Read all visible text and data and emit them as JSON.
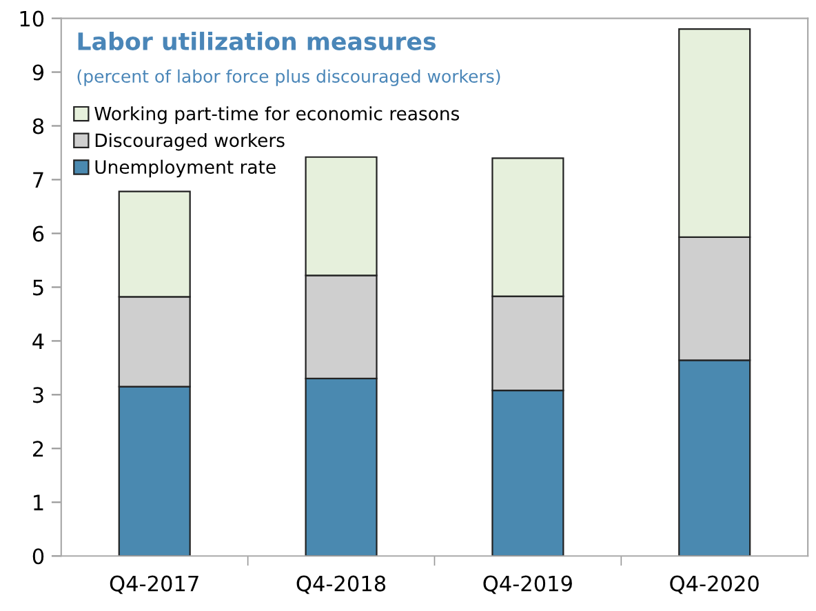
{
  "chart_data": {
    "type": "bar",
    "stacked": true,
    "title": "Labor utilization measures",
    "subtitle": "(percent of labor force plus discouraged workers)",
    "categories": [
      "Q4-2017",
      "Q4-2018",
      "Q4-2019",
      "Q4-2020"
    ],
    "series": [
      {
        "name": "Unemployment rate",
        "color": "#4a89b0",
        "values": [
          3.15,
          3.3,
          3.08,
          3.64
        ]
      },
      {
        "name": "Discouraged workers",
        "color": "#cfcfcf",
        "values": [
          1.67,
          1.92,
          1.75,
          2.29
        ]
      },
      {
        "name": "Working part-time for economic reasons",
        "color": "#e6f0dc",
        "values": [
          1.96,
          2.2,
          2.57,
          3.87
        ]
      }
    ],
    "ylim": [
      0,
      10
    ],
    "yticks": [
      0,
      1,
      2,
      3,
      4,
      5,
      6,
      7,
      8,
      9,
      10
    ],
    "grid": false,
    "legend": "top left"
  }
}
